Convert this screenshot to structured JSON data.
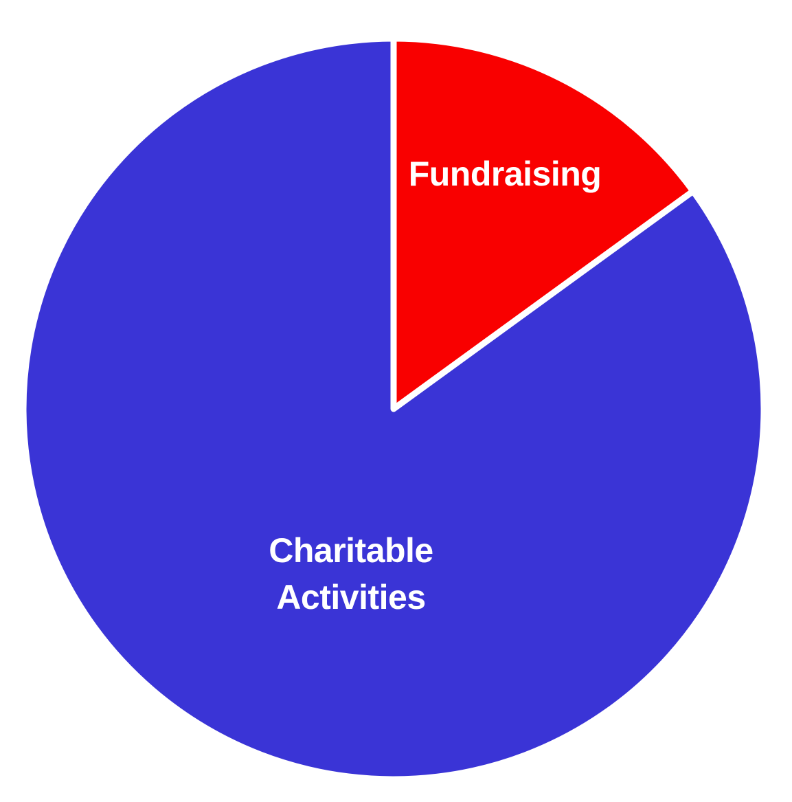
{
  "chart_data": {
    "type": "pie",
    "title": "",
    "legend": "none",
    "labels_position": "inside",
    "background_color": "#ffffff",
    "separator_color": "#ffffff",
    "start_angle_deg": 0,
    "direction": "clockwise",
    "slices": [
      {
        "label": "Fundraising",
        "label_lines": [
          "Fundraising"
        ],
        "value": 15,
        "unit": "percent",
        "color": "#f90000",
        "label_color": "#ffffff"
      },
      {
        "label": "Charitable Activities",
        "label_lines": [
          "Charitable",
          "Activities"
        ],
        "value": 85,
        "unit": "percent",
        "color": "#3a34d6",
        "label_color": "#ffffff"
      }
    ]
  }
}
